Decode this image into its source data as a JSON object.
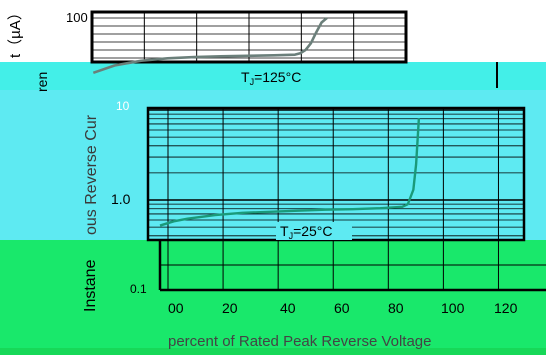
{
  "chart_data": {
    "type": "line",
    "title": "",
    "ylabel": "Instaneous Reverse Current (µA)",
    "ylabel_fragments": {
      "upper_left": "t（µA）",
      "upper_middle": "ren",
      "main": "ous Reverse Cur",
      "lower": "Instane"
    },
    "xlabel": "percent of Rated Peak Reverse Voltage",
    "xlim": [
      0,
      130
    ],
    "ylim": [
      0.1,
      100
    ],
    "y_scale": "log",
    "grid": true,
    "x_ticks": [
      0,
      20,
      40,
      60,
      80,
      100,
      120
    ],
    "x_tick_labels": [
      "00",
      "20",
      "40",
      "60",
      "80",
      "100",
      "120"
    ],
    "y_ticks": [
      0.1,
      1.0,
      10,
      100
    ],
    "y_tick_labels": [
      "0.1",
      "1.0",
      "10",
      "100"
    ],
    "series": [
      {
        "name": "TJ=125°C",
        "x": [
          2,
          10,
          20,
          30,
          40,
          50,
          60,
          70,
          78,
          80,
          82,
          84,
          86,
          88,
          90
        ],
        "y": [
          3.0,
          4.8,
          6.5,
          7.6,
          8.2,
          8.6,
          8.9,
          9.2,
          9.6,
          10.5,
          13,
          20,
          40,
          75,
          100
        ]
      },
      {
        "name": "TJ=25°C",
        "x": [
          0,
          5,
          10,
          20,
          30,
          40,
          50,
          60,
          70,
          80,
          88,
          90,
          92,
          93,
          94,
          95,
          96
        ],
        "y": [
          0.52,
          0.58,
          0.62,
          0.68,
          0.72,
          0.74,
          0.76,
          0.78,
          0.79,
          0.81,
          0.84,
          0.9,
          1.3,
          2.5,
          8,
          40,
          100
        ]
      }
    ]
  },
  "labels": {
    "series_a": {
      "main": "T",
      "sub": "J",
      "rest": "=125°C"
    },
    "series_b": {
      "main": "T",
      "sub": "J",
      "rest": "=25°C"
    }
  },
  "colors": {
    "curve": "#1a9a7a",
    "curve_top": "#6b7f7a",
    "grid": "#000000",
    "band_cyan": "#5eeaf2",
    "band_green": "#19e86b"
  }
}
